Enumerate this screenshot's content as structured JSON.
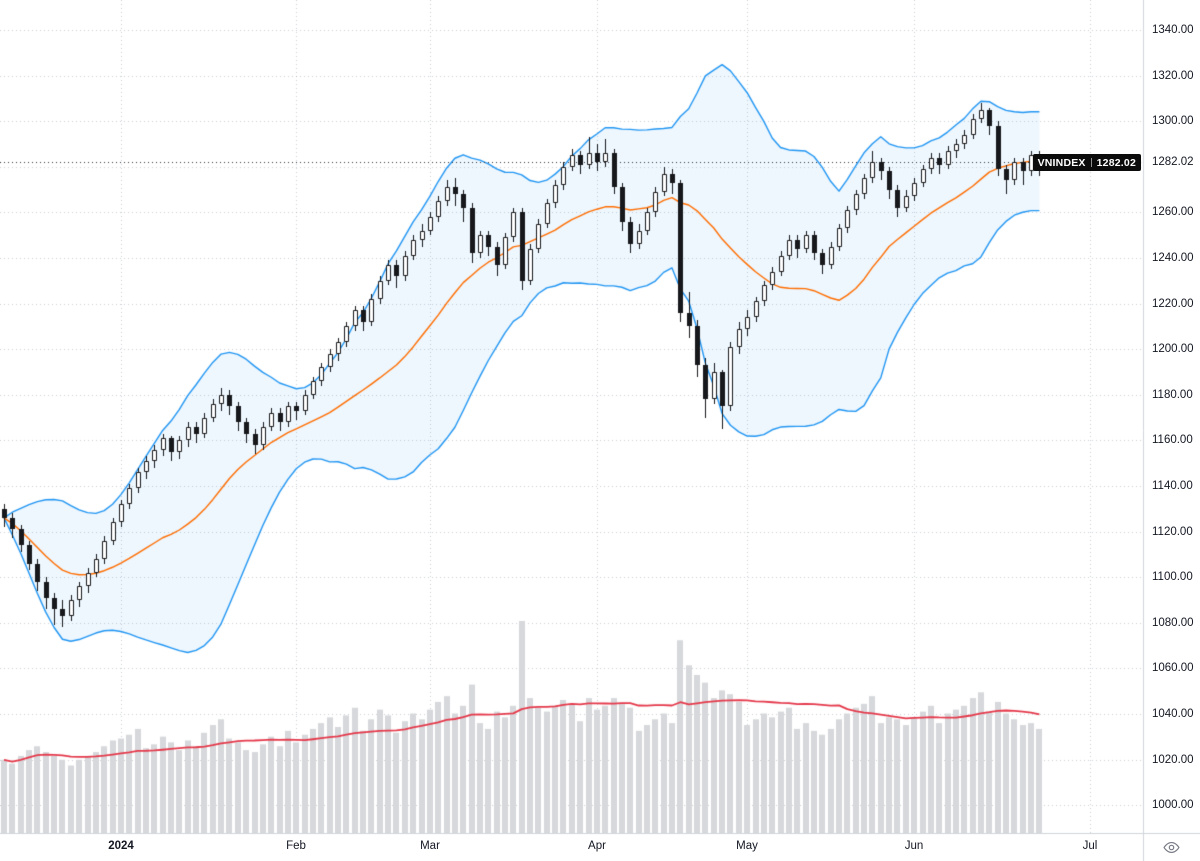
{
  "symbol": {
    "name": "VNINDEX",
    "price_label": "1282.02"
  },
  "price_axis": {
    "min": 1000,
    "max": 1340,
    "step": 20,
    "decimals": 2,
    "current_price": 1282.02
  },
  "time_axis": {
    "labels": [
      {
        "text": "2024",
        "index": 14,
        "emphasis": true
      },
      {
        "text": "Feb",
        "index": 35,
        "emphasis": false
      },
      {
        "text": "Mar",
        "index": 51,
        "emphasis": false
      },
      {
        "text": "Apr",
        "index": 71,
        "emphasis": false
      },
      {
        "text": "May",
        "index": 89,
        "emphasis": false
      },
      {
        "text": "Jun",
        "index": 109,
        "emphasis": false
      },
      {
        "text": "Jul",
        "index": 130,
        "emphasis": false
      }
    ]
  },
  "colors": {
    "background": "#ffffff",
    "grid": "rgba(90,100,115,0.30)",
    "axis_text": "#131722",
    "axis_border": "#d1d4dc",
    "candle_up": "#ffffff",
    "candle_down": "#17181b",
    "candle_border": "#17181b",
    "bb_basis": "#ff6d00",
    "bb_band": "#2196f3",
    "bb_fill": "rgba(33,150,243,0.08)",
    "volume": "#d6d8db",
    "volume_ma": "#e5394b",
    "price_line": "#2e3138",
    "badge_bg": "#0b0b0b",
    "badge_text": "#ffffff"
  },
  "chart_data": {
    "type": "candlestick",
    "title": "VNINDEX",
    "ylim": [
      1000,
      1340
    ],
    "x_axis_labels": [
      "2024",
      "Feb",
      "Mar",
      "Apr",
      "May",
      "Jun",
      "Jul"
    ],
    "legend_position": "none",
    "grid": "dotted",
    "price_line": {
      "value": 1282.02,
      "label": "VNINDEX"
    },
    "indicators": {
      "bollinger": {
        "period": 20,
        "stddev_mult": 2,
        "basis_color": "#ff6d00",
        "band_color": "#2196f3"
      },
      "volume": {
        "color": "#d6d8db"
      },
      "volume_ma": {
        "period": 20,
        "color": "#e5394b"
      }
    },
    "candle_fields": [
      "open",
      "high",
      "low",
      "close",
      "volume"
    ],
    "candles": [
      [
        1130,
        1132,
        1122,
        1126,
        380
      ],
      [
        1126,
        1128,
        1117,
        1121,
        360
      ],
      [
        1121,
        1123,
        1111,
        1114,
        400
      ],
      [
        1114,
        1116,
        1103,
        1106,
        430
      ],
      [
        1106,
        1108,
        1094,
        1098,
        450
      ],
      [
        1098,
        1100,
        1086,
        1091,
        420
      ],
      [
        1091,
        1093,
        1079,
        1086,
        400
      ],
      [
        1086,
        1090,
        1078,
        1083,
        380
      ],
      [
        1083,
        1092,
        1081,
        1090,
        350
      ],
      [
        1090,
        1098,
        1087,
        1096,
        380
      ],
      [
        1096,
        1104,
        1093,
        1102,
        400
      ],
      [
        1102,
        1110,
        1100,
        1108,
        420
      ],
      [
        1108,
        1118,
        1106,
        1116,
        450
      ],
      [
        1116,
        1126,
        1114,
        1124,
        480
      ],
      [
        1124,
        1134,
        1122,
        1132,
        490
      ],
      [
        1132,
        1141,
        1130,
        1139,
        510
      ],
      [
        1139,
        1148,
        1137,
        1146,
        540
      ],
      [
        1146,
        1153,
        1143,
        1151,
        440
      ],
      [
        1151,
        1158,
        1148,
        1156,
        460
      ],
      [
        1156,
        1163,
        1153,
        1161,
        500
      ],
      [
        1161,
        1162,
        1151,
        1155,
        470
      ],
      [
        1155,
        1162,
        1152,
        1160,
        430
      ],
      [
        1160,
        1168,
        1157,
        1166,
        480
      ],
      [
        1166,
        1168,
        1159,
        1163,
        450
      ],
      [
        1163,
        1172,
        1161,
        1170,
        520
      ],
      [
        1170,
        1178,
        1168,
        1176,
        560
      ],
      [
        1176,
        1183,
        1173,
        1180,
        590
      ],
      [
        1180,
        1182,
        1171,
        1175,
        490
      ],
      [
        1175,
        1177,
        1164,
        1168,
        470
      ],
      [
        1168,
        1170,
        1159,
        1163,
        430
      ],
      [
        1163,
        1165,
        1154,
        1158,
        420
      ],
      [
        1158,
        1168,
        1156,
        1166,
        460
      ],
      [
        1166,
        1174,
        1164,
        1172,
        500
      ],
      [
        1172,
        1174,
        1164,
        1168,
        450
      ],
      [
        1168,
        1177,
        1166,
        1175,
        530
      ],
      [
        1175,
        1177,
        1169,
        1173,
        470
      ],
      [
        1173,
        1182,
        1171,
        1180,
        510
      ],
      [
        1180,
        1188,
        1178,
        1186,
        540
      ],
      [
        1186,
        1194,
        1184,
        1192,
        570
      ],
      [
        1192,
        1200,
        1190,
        1198,
        600
      ],
      [
        1198,
        1205,
        1195,
        1203,
        550
      ],
      [
        1203,
        1212,
        1201,
        1210,
        610
      ],
      [
        1210,
        1219,
        1208,
        1217,
        650
      ],
      [
        1217,
        1219,
        1208,
        1212,
        530
      ],
      [
        1212,
        1224,
        1210,
        1222,
        590
      ],
      [
        1222,
        1232,
        1220,
        1230,
        640
      ],
      [
        1230,
        1239,
        1228,
        1237,
        610
      ],
      [
        1237,
        1239,
        1227,
        1232,
        520
      ],
      [
        1232,
        1243,
        1230,
        1241,
        580
      ],
      [
        1241,
        1250,
        1239,
        1248,
        620
      ],
      [
        1248,
        1255,
        1245,
        1252,
        590
      ],
      [
        1252,
        1260,
        1250,
        1258,
        640
      ],
      [
        1258,
        1267,
        1256,
        1265,
        680
      ],
      [
        1265,
        1274,
        1263,
        1271,
        710
      ],
      [
        1271,
        1275,
        1263,
        1268,
        620
      ],
      [
        1268,
        1270,
        1256,
        1262,
        660
      ],
      [
        1262,
        1264,
        1238,
        1242,
        770
      ],
      [
        1242,
        1252,
        1240,
        1250,
        570
      ],
      [
        1250,
        1252,
        1241,
        1245,
        540
      ],
      [
        1245,
        1247,
        1232,
        1237,
        630
      ],
      [
        1237,
        1251,
        1235,
        1249,
        600
      ],
      [
        1249,
        1262,
        1247,
        1260,
        660
      ],
      [
        1260,
        1262,
        1226,
        1230,
        1100
      ],
      [
        1230,
        1246,
        1228,
        1244,
        700
      ],
      [
        1244,
        1257,
        1242,
        1255,
        650
      ],
      [
        1255,
        1266,
        1253,
        1264,
        630
      ],
      [
        1264,
        1274,
        1262,
        1272,
        660
      ],
      [
        1272,
        1282,
        1270,
        1280,
        690
      ],
      [
        1280,
        1288,
        1278,
        1285,
        670
      ],
      [
        1285,
        1287,
        1277,
        1281,
        580
      ],
      [
        1281,
        1293,
        1279,
        1286,
        700
      ],
      [
        1286,
        1290,
        1278,
        1282,
        640
      ],
      [
        1282,
        1292,
        1280,
        1286,
        660
      ],
      [
        1286,
        1288,
        1268,
        1271,
        700
      ],
      [
        1271,
        1273,
        1252,
        1256,
        670
      ],
      [
        1256,
        1258,
        1242,
        1246,
        650
      ],
      [
        1246,
        1255,
        1244,
        1252,
        530
      ],
      [
        1252,
        1262,
        1250,
        1260,
        560
      ],
      [
        1260,
        1271,
        1258,
        1269,
        590
      ],
      [
        1269,
        1280,
        1267,
        1277,
        620
      ],
      [
        1277,
        1279,
        1268,
        1273,
        570
      ],
      [
        1273,
        1274,
        1212,
        1216,
        1000
      ],
      [
        1216,
        1225,
        1205,
        1210,
        870
      ],
      [
        1210,
        1213,
        1188,
        1193,
        820
      ],
      [
        1193,
        1196,
        1170,
        1178,
        780
      ],
      [
        1178,
        1194,
        1176,
        1190,
        700
      ],
      [
        1190,
        1191,
        1165,
        1175,
        740
      ],
      [
        1175,
        1203,
        1173,
        1201,
        720
      ],
      [
        1201,
        1212,
        1198,
        1209,
        680
      ],
      [
        1209,
        1217,
        1206,
        1214,
        560
      ],
      [
        1214,
        1223,
        1212,
        1221,
        590
      ],
      [
        1221,
        1230,
        1219,
        1228,
        620
      ],
      [
        1228,
        1236,
        1226,
        1234,
        600
      ],
      [
        1234,
        1243,
        1232,
        1241,
        630
      ],
      [
        1241,
        1250,
        1239,
        1248,
        650
      ],
      [
        1248,
        1250,
        1240,
        1244,
        540
      ],
      [
        1244,
        1252,
        1242,
        1250,
        570
      ],
      [
        1250,
        1252,
        1239,
        1242,
        530
      ],
      [
        1242,
        1244,
        1233,
        1237,
        510
      ],
      [
        1237,
        1247,
        1235,
        1245,
        540
      ],
      [
        1245,
        1255,
        1243,
        1253,
        590
      ],
      [
        1253,
        1263,
        1251,
        1261,
        620
      ],
      [
        1261,
        1270,
        1259,
        1268,
        650
      ],
      [
        1268,
        1277,
        1266,
        1275,
        670
      ],
      [
        1275,
        1287,
        1273,
        1282,
        710
      ],
      [
        1282,
        1284,
        1274,
        1278,
        570
      ],
      [
        1278,
        1280,
        1266,
        1270,
        600
      ],
      [
        1270,
        1272,
        1258,
        1262,
        590
      ],
      [
        1262,
        1270,
        1260,
        1267,
        560
      ],
      [
        1267,
        1275,
        1265,
        1273,
        600
      ],
      [
        1273,
        1281,
        1271,
        1279,
        630
      ],
      [
        1279,
        1286,
        1277,
        1284,
        660
      ],
      [
        1284,
        1286,
        1277,
        1281,
        570
      ],
      [
        1281,
        1289,
        1279,
        1287,
        620
      ],
      [
        1287,
        1292,
        1284,
        1290,
        640
      ],
      [
        1290,
        1296,
        1288,
        1294,
        660
      ],
      [
        1294,
        1303,
        1292,
        1301,
        700
      ],
      [
        1301,
        1308,
        1299,
        1305,
        730
      ],
      [
        1305,
        1306,
        1294,
        1298,
        630
      ],
      [
        1298,
        1300,
        1276,
        1279,
        680
      ],
      [
        1279,
        1281,
        1268,
        1274,
        620
      ],
      [
        1274,
        1284,
        1272,
        1282,
        590
      ],
      [
        1282,
        1284,
        1272,
        1278,
        560
      ],
      [
        1278,
        1287,
        1276,
        1285,
        570
      ],
      [
        1285,
        1287,
        1276,
        1282.02,
        540
      ]
    ]
  }
}
